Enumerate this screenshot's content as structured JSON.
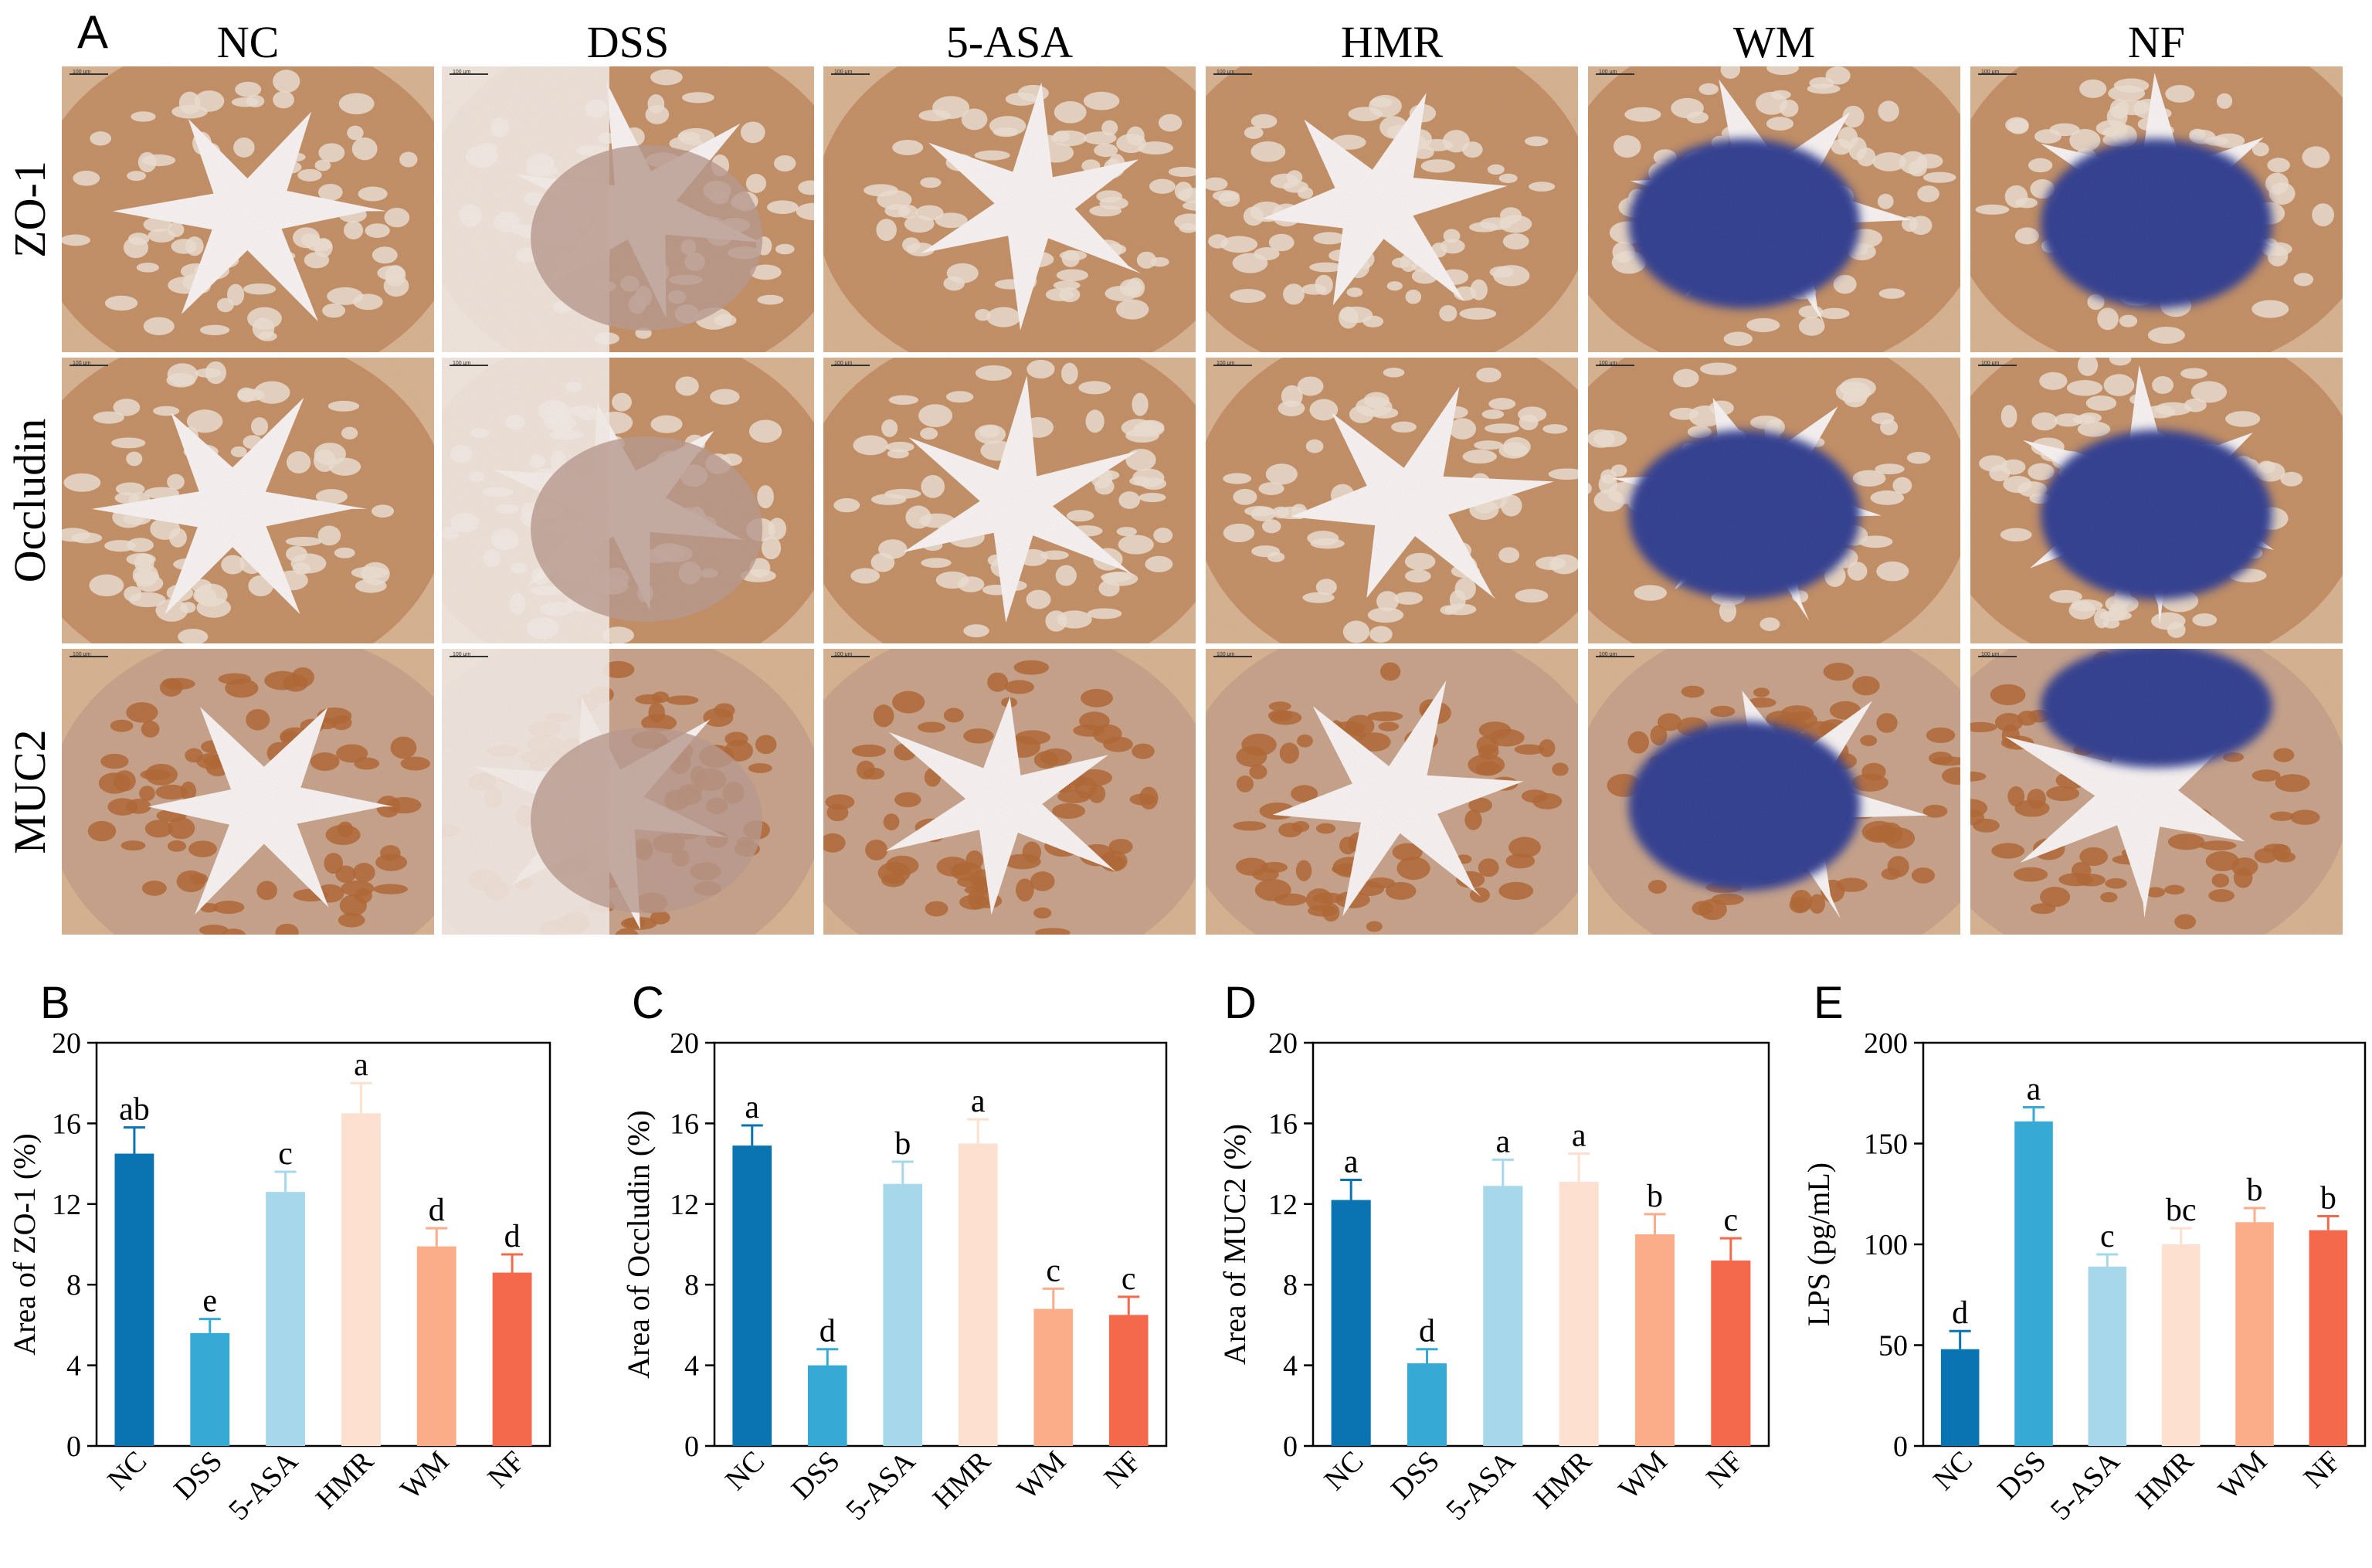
{
  "figure": {
    "panel_A": {
      "label": "A",
      "columns": [
        "NC",
        "DSS",
        "5-ASA",
        "HMR",
        "WM",
        "NF"
      ],
      "rows": [
        "ZO-1",
        "Occludin",
        "MUC2"
      ],
      "scale_bar_text": "100 μm"
    }
  },
  "colors": {
    "NC": "#0a73b2",
    "DSS": "#36aad5",
    "5-ASA": "#a7d7ea",
    "HMR": "#fde0d0",
    "WM": "#fbad8a",
    "NF": "#f4694b",
    "tissue_brown": "#c48f5e",
    "muscle_tan": "#d9b48c",
    "lumen": "#fbf8f3",
    "lymphoid_blue": "#2a3a8c",
    "mucin_brown": "#b0652a"
  },
  "chart_data": [
    {
      "type": "bar",
      "panel": "B",
      "categories": [
        "NC",
        "DSS",
        "5-ASA",
        "HMR",
        "WM",
        "NF"
      ],
      "values": [
        14.5,
        5.6,
        12.6,
        16.5,
        9.9,
        8.6
      ],
      "errors": [
        1.3,
        0.7,
        1.0,
        1.5,
        0.9,
        0.9
      ],
      "letters": [
        "ab",
        "e",
        "c",
        "a",
        "d",
        "d"
      ],
      "ylabel": "Area of ZO-1 (%)",
      "ylim": [
        0,
        20
      ],
      "yticks": [
        0,
        4,
        8,
        12,
        16,
        20
      ]
    },
    {
      "type": "bar",
      "panel": "C",
      "categories": [
        "NC",
        "DSS",
        "5-ASA",
        "HMR",
        "WM",
        "NF"
      ],
      "values": [
        14.9,
        4.0,
        13.0,
        15.0,
        6.8,
        6.5
      ],
      "errors": [
        1.0,
        0.8,
        1.1,
        1.2,
        1.0,
        0.9
      ],
      "letters": [
        "a",
        "d",
        "b",
        "a",
        "c",
        "c"
      ],
      "ylabel": "Area of Occludin (%)",
      "ylim": [
        0,
        20
      ],
      "yticks": [
        0,
        4,
        8,
        12,
        16,
        20
      ]
    },
    {
      "type": "bar",
      "panel": "D",
      "categories": [
        "NC",
        "DSS",
        "5-ASA",
        "HMR",
        "WM",
        "NF"
      ],
      "values": [
        12.2,
        4.1,
        12.9,
        13.1,
        10.5,
        9.2
      ],
      "errors": [
        1.0,
        0.7,
        1.3,
        1.4,
        1.0,
        1.1
      ],
      "letters": [
        "a",
        "d",
        "a",
        "a",
        "b",
        "c"
      ],
      "ylabel": "Area of MUC2 (%)",
      "ylim": [
        0,
        20
      ],
      "yticks": [
        0,
        4,
        8,
        12,
        16,
        20
      ]
    },
    {
      "type": "bar",
      "panel": "E",
      "categories": [
        "NC",
        "DSS",
        "5-ASA",
        "HMR",
        "WM",
        "NF"
      ],
      "values": [
        48,
        161,
        89,
        100,
        111,
        107
      ],
      "errors": [
        9,
        7,
        6,
        8,
        7,
        7
      ],
      "letters": [
        "d",
        "a",
        "c",
        "bc",
        "b",
        "b"
      ],
      "ylabel": "LPS (pg/mL)",
      "ylim": [
        0,
        200
      ],
      "yticks": [
        0,
        50,
        100,
        150,
        200
      ]
    }
  ]
}
